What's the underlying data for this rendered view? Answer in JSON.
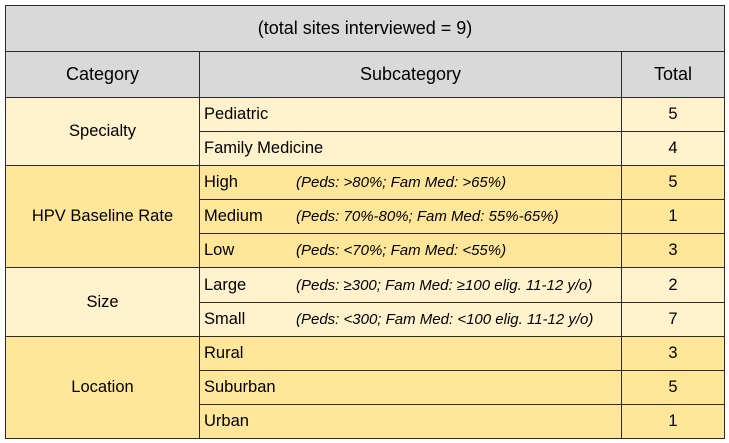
{
  "chart_data": {
    "type": "table",
    "title": "(total sites interviewed = 9)",
    "columns": [
      "Category",
      "Subcategory",
      "Total"
    ],
    "groups": [
      {
        "category": "Specialty",
        "rows": [
          {
            "subcategory": "Pediatric",
            "note": "",
            "total": "5"
          },
          {
            "subcategory": "Family Medicine",
            "note": "",
            "total": "4"
          }
        ]
      },
      {
        "category": "HPV Baseline Rate",
        "rows": [
          {
            "subcategory": "High",
            "note": "(Peds: >80%; Fam Med: >65%)",
            "total": "5"
          },
          {
            "subcategory": "Medium",
            "note": "(Peds: 70%-80%; Fam Med: 55%-65%)",
            "total": "1"
          },
          {
            "subcategory": "Low",
            "note": "(Peds: <70%; Fam Med: <55%)",
            "total": "3"
          }
        ]
      },
      {
        "category": "Size",
        "rows": [
          {
            "subcategory": "Large",
            "note": "(Peds: ≥300; Fam Med: ≥100 elig. 11-12 y/o)",
            "total": "2"
          },
          {
            "subcategory": "Small",
            "note": "(Peds: <300; Fam Med: <100 elig. 11-12 y/o)",
            "total": "7"
          }
        ]
      },
      {
        "category": "Location",
        "rows": [
          {
            "subcategory": "Rural",
            "note": "",
            "total": "3"
          },
          {
            "subcategory": "Suburban",
            "note": "",
            "total": "5"
          },
          {
            "subcategory": "Urban",
            "note": "",
            "total": "1"
          }
        ]
      }
    ]
  },
  "colors": {
    "header_fill": "#d9d9d9",
    "group_fill_light": "#fff2cc",
    "group_fill_dark": "#ffe699",
    "border": "#2b2b2b"
  }
}
